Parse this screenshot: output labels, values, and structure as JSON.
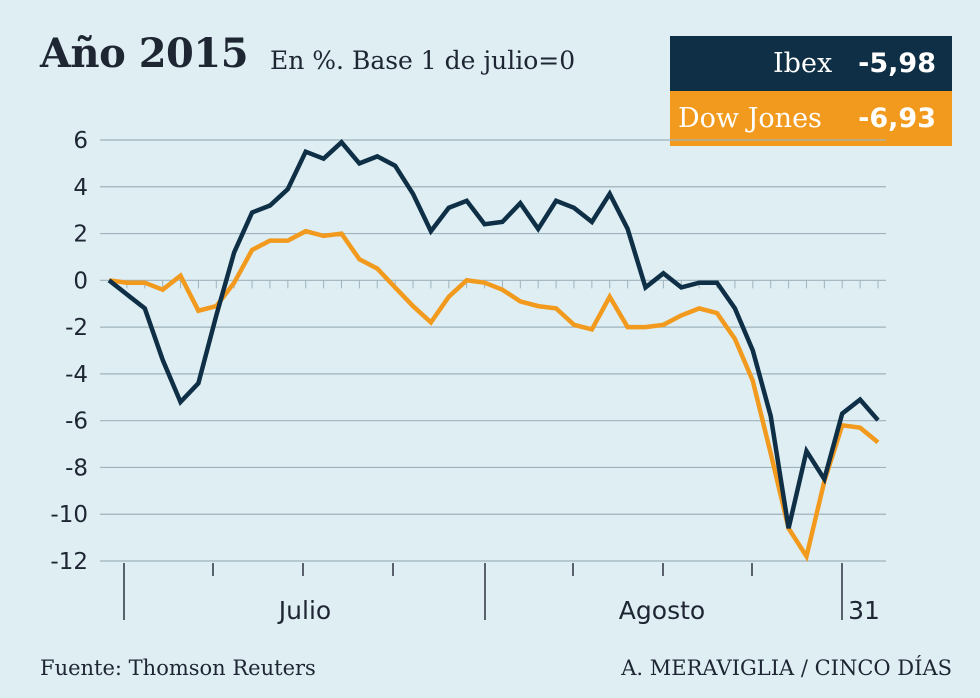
{
  "header": {
    "title": "Año 2015",
    "subtitle": "En %. Base 1 de julio=0"
  },
  "legend": {
    "ibex": {
      "name": "Ibex",
      "value": "-5,98",
      "color": "#0e2f45"
    },
    "dow": {
      "name": "Dow Jones",
      "value": "-6,93",
      "color": "#f29a1e"
    }
  },
  "footer": {
    "source": "Fuente: Thomson Reuters",
    "credit": "A. MERAVIGLIA / CINCO DÍAS"
  },
  "chart_data": {
    "type": "line",
    "title": "Año 2015",
    "subtitle": "En %. Base 1 de julio=0",
    "ylim": [
      -12,
      6
    ],
    "yticks": [
      6,
      4,
      2,
      0,
      -2,
      -4,
      -6,
      -8,
      -10,
      -12
    ],
    "x_labels": [
      "Julio",
      "Agosto",
      "31"
    ],
    "grid": true,
    "legend_position": "top-right",
    "series": [
      {
        "name": "Ibex",
        "color": "#0e2f45",
        "values": [
          0,
          -0.6,
          -1.2,
          -3.4,
          -5.2,
          -4.4,
          -1.5,
          1.2,
          2.9,
          3.2,
          3.9,
          5.5,
          5.2,
          5.9,
          5.0,
          5.3,
          4.9,
          3.7,
          2.1,
          3.1,
          3.4,
          2.4,
          2.5,
          3.3,
          2.2,
          3.4,
          3.1,
          2.5,
          3.7,
          2.2,
          -0.3,
          0.3,
          -0.3,
          -0.1,
          -0.1,
          -1.2,
          -3.0,
          -5.8,
          -10.6,
          -7.3,
          -8.5,
          -5.7,
          -5.1,
          -5.98
        ]
      },
      {
        "name": "Dow Jones",
        "color": "#f29a1e",
        "values": [
          0,
          -0.1,
          -0.1,
          -0.4,
          0.2,
          -1.3,
          -1.1,
          -0.1,
          1.3,
          1.7,
          1.7,
          2.1,
          1.9,
          2.0,
          0.9,
          0.5,
          -0.3,
          -1.1,
          -1.8,
          -0.7,
          0.0,
          -0.1,
          -0.4,
          -0.9,
          -1.1,
          -1.2,
          -1.9,
          -2.1,
          -0.7,
          -2.0,
          -2.0,
          -1.9,
          -1.5,
          -1.2,
          -1.4,
          -2.5,
          -4.3,
          -7.4,
          -10.6,
          -11.8,
          -8.6,
          -6.2,
          -6.3,
          -6.93
        ]
      }
    ]
  }
}
